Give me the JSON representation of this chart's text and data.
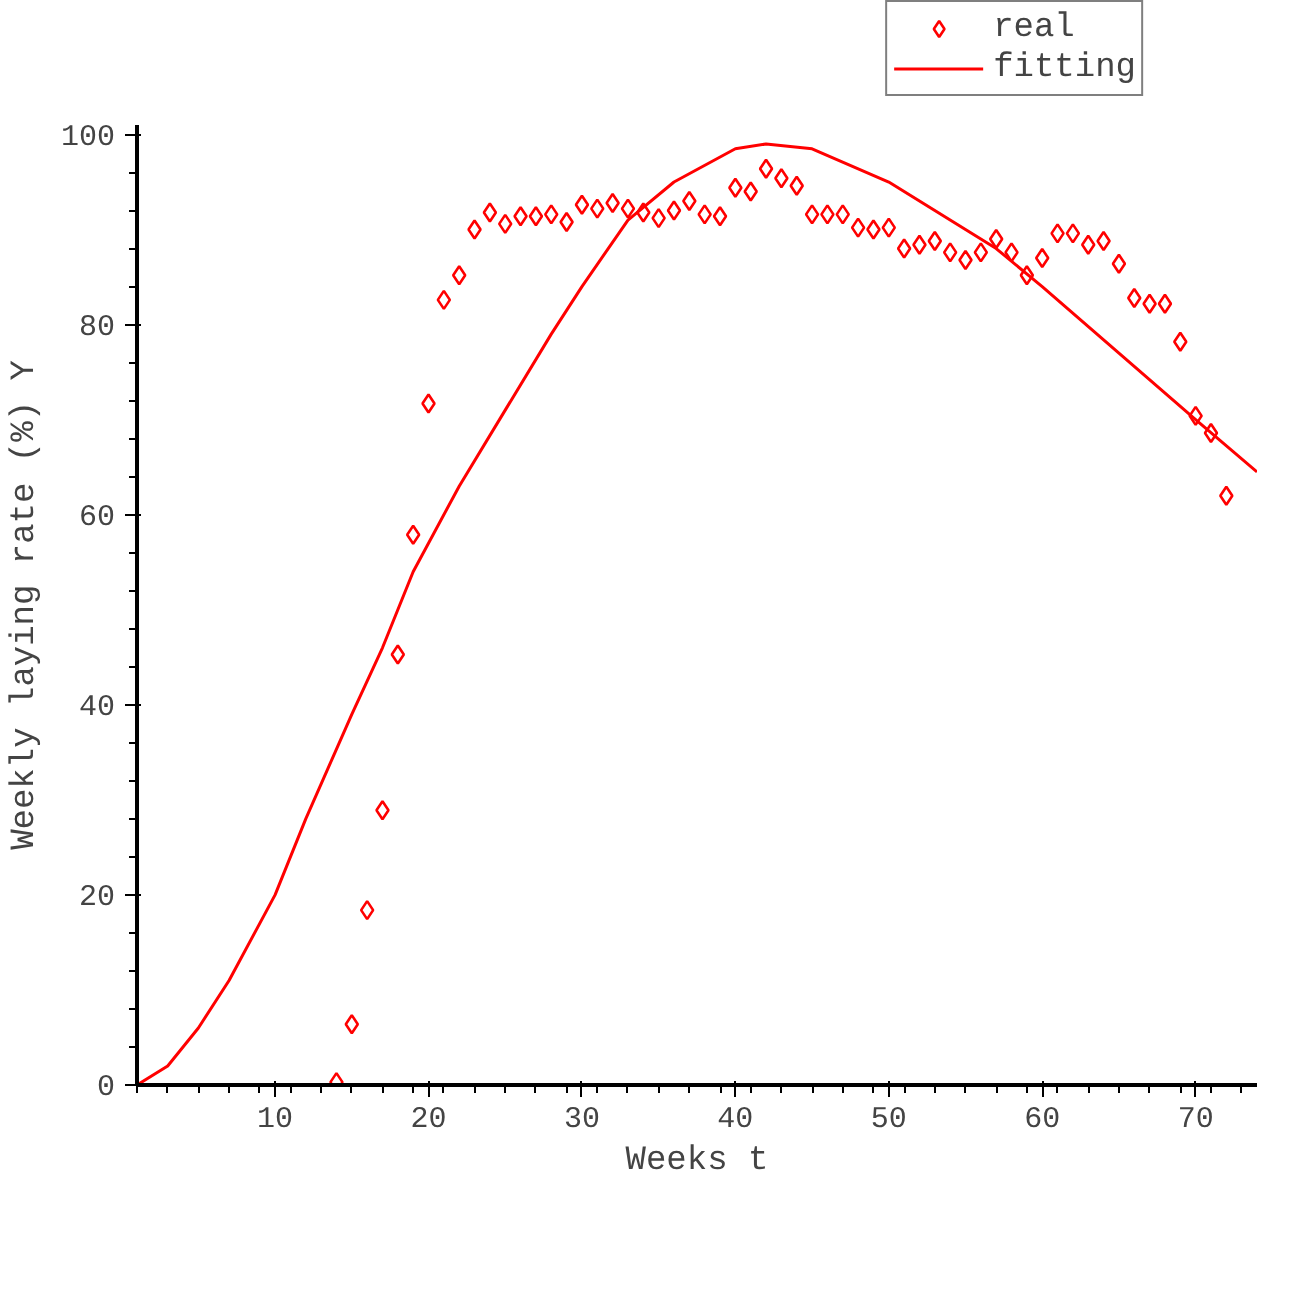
{
  "chart_data": {
    "type": "scatter",
    "xlabel": "Weeks t",
    "ylabel": "Weekly laying rate (%) Y",
    "xlim": [
      1,
      74
    ],
    "ylim": [
      0,
      101
    ],
    "xticks": [
      10,
      20,
      30,
      40,
      50,
      60,
      70
    ],
    "yticks": [
      0,
      20,
      40,
      60,
      80,
      100
    ],
    "grid": false,
    "legend": "top right",
    "series": [
      {
        "name": "real",
        "marker": "diamond",
        "color": "#ff0000",
        "x": [
          14,
          15,
          16,
          17,
          18,
          19,
          20,
          21,
          22,
          23,
          24,
          25,
          26,
          27,
          28,
          29,
          30,
          31,
          32,
          33,
          34,
          35,
          36,
          37,
          38,
          39,
          40,
          41,
          42,
          43,
          44,
          45,
          46,
          47,
          48,
          49,
          50,
          51,
          52,
          53,
          54,
          55,
          56,
          57,
          58,
          59,
          60,
          61,
          62,
          63,
          64,
          65,
          66,
          67,
          68,
          69,
          70,
          71,
          72
        ],
        "values": [
          0.3,
          6.4,
          18.4,
          28.9,
          45.3,
          57.9,
          71.7,
          82.6,
          85.2,
          90,
          91.8,
          90.6,
          91.4,
          91.4,
          91.6,
          90.8,
          92.6,
          92.2,
          92.8,
          92.2,
          91.8,
          91.2,
          92,
          93,
          91.6,
          91.4,
          94.4,
          94,
          96.4,
          95.4,
          94.6,
          91.6,
          91.6,
          91.6,
          90.2,
          90,
          90.2,
          88,
          88.4,
          88.8,
          87.6,
          86.8,
          87.6,
          89,
          87.6,
          85.2,
          87,
          89.6,
          89.6,
          88.4,
          88.8,
          86.4,
          82.8,
          82.2,
          82.2,
          78.2,
          70.4,
          68.6,
          62
        ]
      },
      {
        "name": "fitting",
        "type": "line",
        "color": "#ff0000",
        "x": [
          1,
          3,
          5,
          7,
          10,
          12,
          15,
          17,
          19,
          22,
          25,
          28,
          30,
          33,
          36,
          40,
          42,
          45,
          50,
          55,
          57,
          60,
          65,
          70,
          74
        ],
        "values": [
          0,
          2,
          6,
          11,
          20,
          28,
          39,
          46,
          54,
          63,
          71,
          79,
          84,
          91,
          95,
          98.5,
          99,
          98.5,
          95,
          90,
          88,
          84,
          77,
          70,
          64.5
        ]
      }
    ]
  }
}
